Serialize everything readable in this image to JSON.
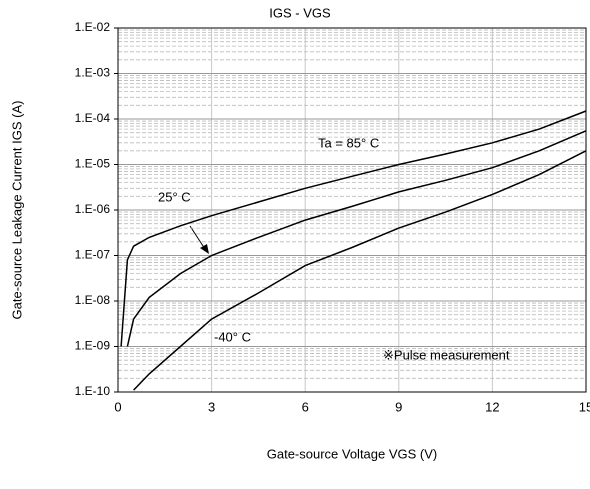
{
  "chart_data": {
    "type": "line",
    "title": "IGS - VGS",
    "x_label": "Gate-source Voltage VGS (V)",
    "y_label": "Gate-source Leakage Current IGS (A)",
    "x": [
      0.1,
      0.3,
      0.5,
      1,
      2,
      3,
      4.5,
      6,
      7.5,
      9,
      10.5,
      12,
      13.5,
      15
    ],
    "series": [
      {
        "name": "Ta = 85° C",
        "color": "#000000",
        "values": [
          1e-09,
          8e-08,
          1.6e-07,
          2.5e-07,
          4.5e-07,
          7.5e-07,
          1.5e-06,
          3e-06,
          5.5e-06,
          1e-05,
          1.7e-05,
          3e-05,
          6e-05,
          0.00015
        ]
      },
      {
        "name": "25° C",
        "color": "#000000",
        "values": [
          null,
          1e-09,
          4e-09,
          1.2e-08,
          4e-08,
          1e-07,
          2.5e-07,
          6e-07,
          1.2e-06,
          2.5e-06,
          4.5e-06,
          8.5e-06,
          2e-05,
          5.5e-05
        ]
      },
      {
        "name": "-40° C",
        "color": "#000000",
        "values": [
          null,
          null,
          1.1e-10,
          2.5e-10,
          1e-09,
          4e-09,
          1.5e-08,
          6e-08,
          1.5e-07,
          4e-07,
          9e-07,
          2.2e-06,
          6e-06,
          2e-05
        ]
      }
    ],
    "annotations": [
      "※Pulse measurement"
    ],
    "xlim": [
      0,
      15
    ],
    "xticks": [
      0,
      3,
      6,
      9,
      12,
      15
    ],
    "ylim": [
      1e-10,
      0.01
    ],
    "log_y": true,
    "yticks": [
      {
        "value": 1e-10,
        "label": "1.E-10"
      },
      {
        "value": 1e-09,
        "label": "1.E-09"
      },
      {
        "value": 1e-08,
        "label": "1.E-08"
      },
      {
        "value": 1e-07,
        "label": "1.E-07"
      },
      {
        "value": 1e-06,
        "label": "1.E-06"
      },
      {
        "value": 1e-05,
        "label": "1.E-05"
      },
      {
        "value": 0.0001,
        "label": "1.E-04"
      },
      {
        "value": 0.001,
        "label": "1.E-03"
      },
      {
        "value": 0.01,
        "label": "1.E-02"
      }
    ],
    "grid": true,
    "minor_grid": true,
    "legend": false
  }
}
